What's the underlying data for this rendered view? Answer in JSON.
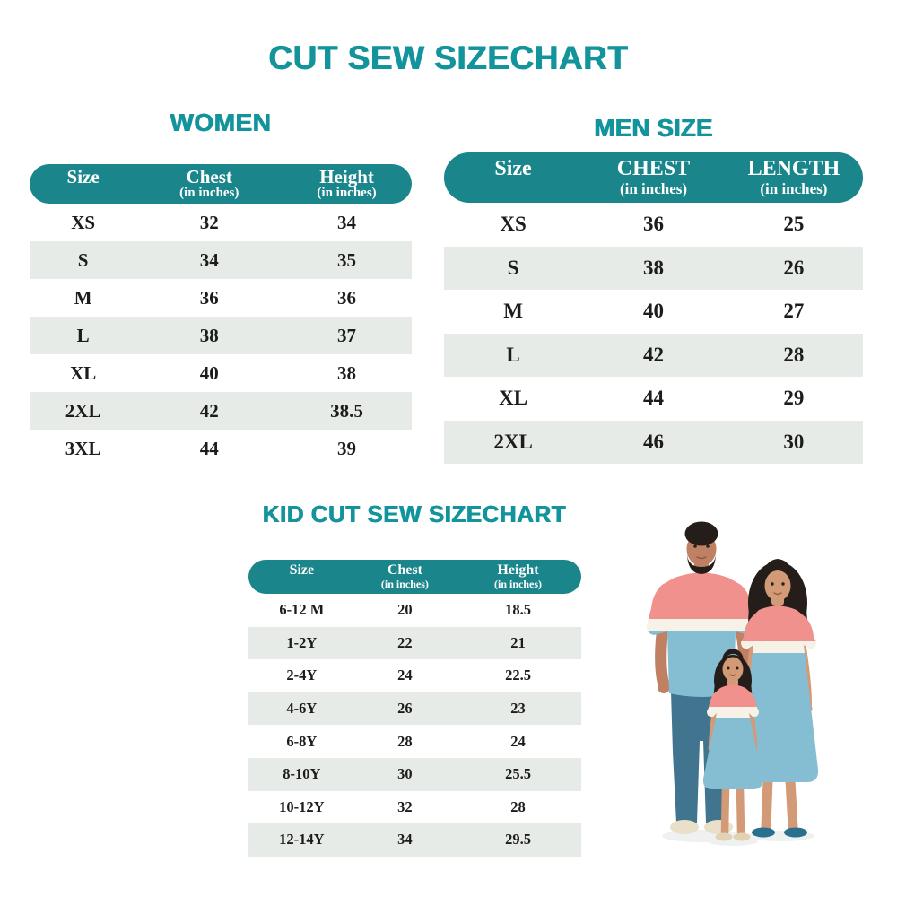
{
  "page": {
    "title": "CUT SEW SIZECHART"
  },
  "colors": {
    "title_teal": "#13949c",
    "pill_teal": "#1a868c",
    "row_alt": "#e7ebe8",
    "text": "#1c1c1c",
    "shirt_pink": "#f0918d",
    "shirt_white": "#f7f2e7",
    "shirt_blue": "#85bdd3",
    "pants_blue": "#41748f",
    "skin": "#c08063",
    "skin_light": "#d29a76",
    "hair": "#241d19",
    "flats_teal": "#2a708e",
    "sandals_tan": "#e2d2b4",
    "shoes_cream": "#eadfc9"
  },
  "women_table": {
    "title": "WOMEN",
    "columns": [
      {
        "label": "Size",
        "sub": ""
      },
      {
        "label": "Chest",
        "sub": "(in inches)"
      },
      {
        "label": "Height",
        "sub": "(in inches)"
      }
    ],
    "rows": [
      [
        "XS",
        "32",
        "34"
      ],
      [
        "S",
        "34",
        "35"
      ],
      [
        "M",
        "36",
        "36"
      ],
      [
        "L",
        "38",
        "37"
      ],
      [
        "XL",
        "40",
        "38"
      ],
      [
        "2XL",
        "42",
        "38.5"
      ],
      [
        "3XL",
        "44",
        "39"
      ]
    ]
  },
  "men_table": {
    "title": "MEN SIZE",
    "columns": [
      {
        "label": "Size",
        "sub": ""
      },
      {
        "label": "CHEST",
        "sub": "(in inches)"
      },
      {
        "label": "LENGTH",
        "sub": "(in inches)"
      }
    ],
    "rows": [
      [
        "XS",
        "36",
        "25"
      ],
      [
        "S",
        "38",
        "26"
      ],
      [
        "M",
        "40",
        "27"
      ],
      [
        "L",
        "42",
        "28"
      ],
      [
        "XL",
        "44",
        "29"
      ],
      [
        "2XL",
        "46",
        "30"
      ]
    ]
  },
  "kid_table": {
    "title": "KID CUT SEW SIZECHART",
    "columns": [
      {
        "label": "Size",
        "sub": ""
      },
      {
        "label": "Chest",
        "sub": "(in inches)"
      },
      {
        "label": "Height",
        "sub": "(in inches)"
      }
    ],
    "rows": [
      [
        "6-12 M",
        "20",
        "18.5"
      ],
      [
        "1-2Y",
        "22",
        "21"
      ],
      [
        "2-4Y",
        "24",
        "22.5"
      ],
      [
        "4-6Y",
        "26",
        "23"
      ],
      [
        "6-8Y",
        "28",
        "24"
      ],
      [
        "8-10Y",
        "30",
        "25.5"
      ],
      [
        "10-12Y",
        "32",
        "28"
      ],
      [
        "12-14Y",
        "34",
        "29.5"
      ]
    ]
  }
}
